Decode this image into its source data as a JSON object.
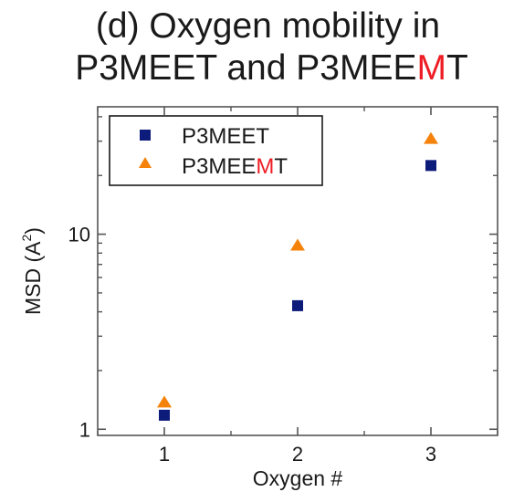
{
  "title": {
    "line1": "(d) Oxygen mobility in",
    "line2_prefix": "P3MEET and P3MEE",
    "line2_highlight": "M",
    "line2_suffix": "T"
  },
  "chart_data": {
    "type": "scatter",
    "title": "(d) Oxygen mobility in P3MEET and P3MEEMT",
    "xlabel": "Oxygen #",
    "ylabel_base": "MSD (A",
    "ylabel_sup": "2",
    "ylabel_end": ")",
    "x_scale": "linear",
    "y_scale": "log",
    "xlim": [
      0.5,
      3.5
    ],
    "ylim": [
      0.93,
      45
    ],
    "x_ticks": [
      1,
      2,
      3
    ],
    "x_tick_labels": [
      "1",
      "2",
      "3"
    ],
    "y_ticks": [
      1,
      10
    ],
    "y_tick_labels": [
      "1",
      "10"
    ],
    "grid": false,
    "legend_position": "top-left",
    "highlight_color": "#ee1c24",
    "series": [
      {
        "name": "P3MEET",
        "legend_prefix": "P3MEET",
        "legend_highlight": "",
        "legend_suffix": "",
        "marker": "square",
        "color": "#0d1b7a",
        "x": [
          1,
          2,
          3
        ],
        "y": [
          1.18,
          4.3,
          22.5
        ]
      },
      {
        "name": "P3MEEMT",
        "legend_prefix": "P3MEE",
        "legend_highlight": "M",
        "legend_suffix": "T",
        "marker": "triangle",
        "color": "#f5820a",
        "x": [
          1,
          2,
          3
        ],
        "y": [
          1.38,
          8.8,
          31
        ]
      }
    ]
  }
}
